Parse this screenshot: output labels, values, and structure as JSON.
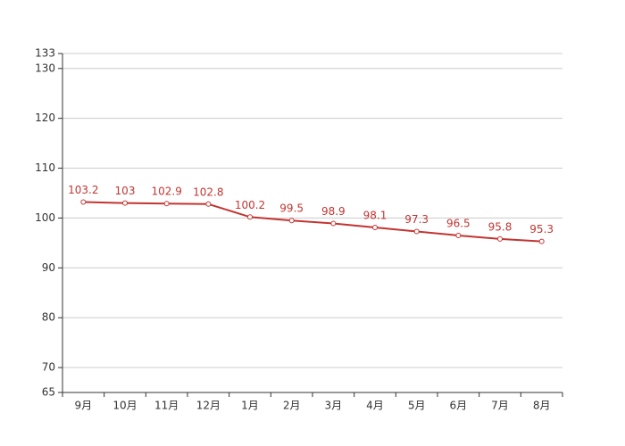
{
  "chart_data": {
    "type": "line",
    "categories": [
      "9月",
      "10月",
      "11月",
      "12月",
      "1月",
      "2月",
      "3月",
      "4月",
      "5月",
      "6月",
      "7月",
      "8月"
    ],
    "values": [
      103.2,
      103,
      102.9,
      102.8,
      100.2,
      99.5,
      98.9,
      98.1,
      97.3,
      96.5,
      95.8,
      95.3
    ],
    "color": "#c23531",
    "ylim": [
      65,
      133
    ],
    "yticks": [
      65,
      70,
      80,
      90,
      100,
      110,
      120,
      130,
      133
    ],
    "grid": true
  }
}
